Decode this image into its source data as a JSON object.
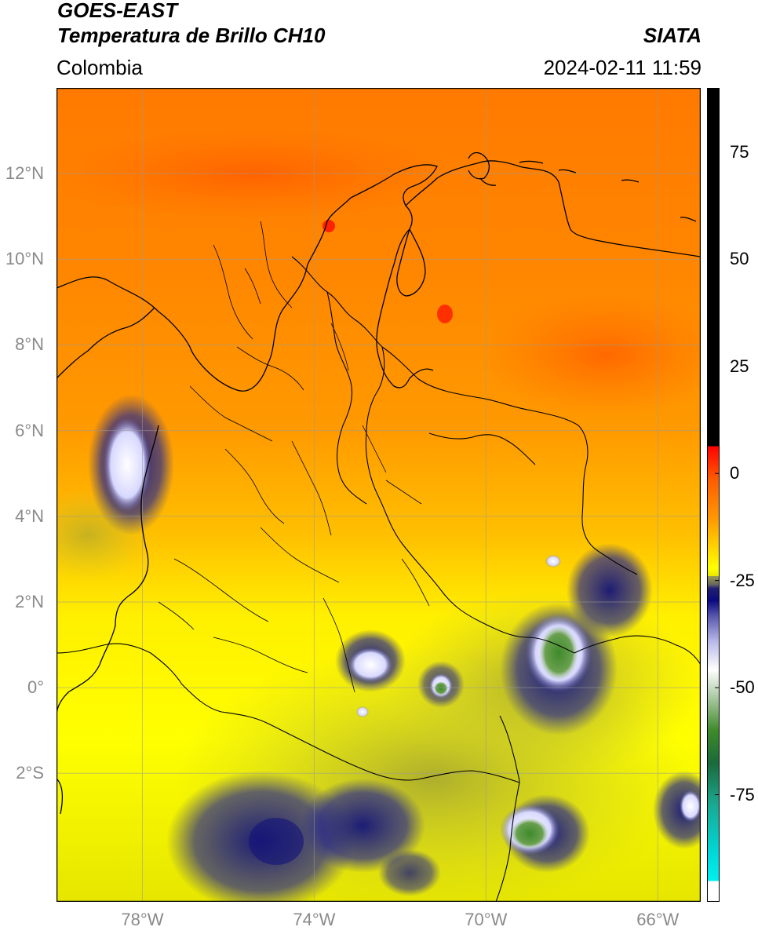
{
  "header": {
    "satellite": "GOES-EAST",
    "product": "Temperatura de Brillo CH10",
    "region": "Colombia",
    "source": "SIATA",
    "timestamp": "2024-02-11 11:59"
  },
  "axes": {
    "lat_labels": [
      "12°N",
      "10°N",
      "8°N",
      "6°N",
      "4°N",
      "2°N",
      "0°",
      "2°S"
    ],
    "lat_values": [
      12,
      10,
      8,
      6,
      4,
      2,
      0,
      -2
    ],
    "lon_labels": [
      "78°W",
      "74°W",
      "70°W",
      "66°W"
    ],
    "lon_values": [
      -78,
      -74,
      -70,
      -66
    ],
    "lon_range": [
      -80,
      -65
    ],
    "lat_range": [
      -5,
      14
    ],
    "grid": true
  },
  "colorbar": {
    "ticks": [
      "75",
      "50",
      "25",
      "0",
      "-25",
      "-50",
      "-75"
    ],
    "tick_values": [
      75,
      50,
      25,
      0,
      -25,
      -50,
      -75
    ],
    "range": [
      -100,
      90
    ]
  },
  "colors": {
    "warm_red": "#ff3a00",
    "orange": "#ff8a00",
    "yellow": "#ffff00",
    "olive": "#b9b934",
    "dark_blue": "#1a1a7a",
    "white": "#ffffff",
    "green": "#3e8a2a",
    "cyan": "#00d8d8",
    "black": "#000000"
  }
}
